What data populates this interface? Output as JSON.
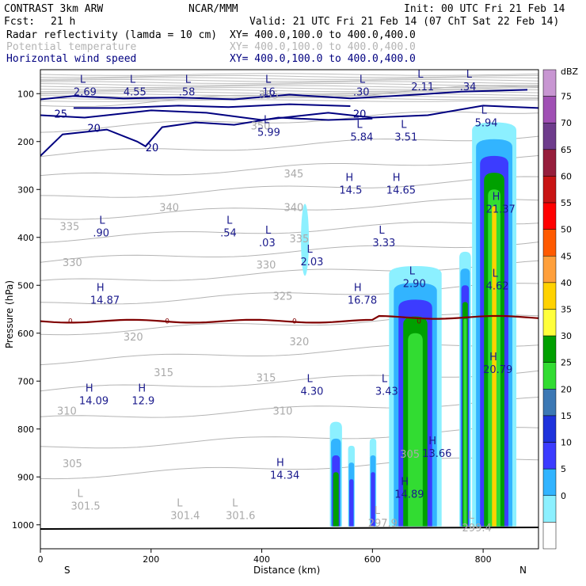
{
  "header": {
    "model": "CONTRAST  3km ARW",
    "center": "NCAR/MMM",
    "init": "Init: 00 UTC Fri 21 Feb 14",
    "fcst_label": "Fcst:",
    "fcst_value": "21 h",
    "valid": "Valid: 21 UTC Fri 21 Feb 14 (07 ChT Sat 22 Feb 14)"
  },
  "fields": [
    {
      "name": "Radar reflectivity (lamda = 10 cm)",
      "xy": "XY= 400.0,100.0 to 400.0,400.0",
      "color": "#000000"
    },
    {
      "name": "Potential temperature",
      "xy": "XY= 400.0,100.0 to 400.0,400.0",
      "color": "#b4b4b4"
    },
    {
      "name": "Horizontal wind speed",
      "xy": "XY= 400.0,100.0 to 400.0,400.0",
      "color": "#000080"
    }
  ],
  "chart_data": {
    "type": "heatmap",
    "xlabel": "Distance (km)",
    "ylabel": "Pressure (hPa)",
    "xlim": [
      0,
      900
    ],
    "ylim": [
      1050,
      50
    ],
    "xticks": [
      0,
      200,
      400,
      600,
      800
    ],
    "yticks": [
      100,
      200,
      300,
      400,
      500,
      600,
      700,
      800,
      900,
      1000
    ],
    "x_ends": {
      "left": "S",
      "right": "N"
    },
    "colorbar": {
      "unit": "dBZ",
      "levels": [
        75,
        70,
        65,
        60,
        55,
        50,
        45,
        40,
        35,
        30,
        25,
        20,
        15,
        10,
        5,
        0
      ],
      "colors": [
        "#c896d2",
        "#a050b4",
        "#6e3c8c",
        "#961e3c",
        "#c81414",
        "#ff0000",
        "#ff5a00",
        "#ffa03c",
        "#ffd200",
        "#ffff3c",
        "#00a000",
        "#32dc32",
        "#3c78b4",
        "#1e32dc",
        "#3c3cff",
        "#32b4ff",
        "#8cf0ff",
        "#ffffff"
      ]
    },
    "reflectivity_cells": [
      {
        "x1": 523,
        "x2": 545,
        "top": 785,
        "max_dbz": 25
      },
      {
        "x1": 556,
        "x2": 568,
        "top": 835,
        "max_dbz": 20
      },
      {
        "x1": 595,
        "x2": 607,
        "top": 820,
        "max_dbz": 20
      },
      {
        "x1": 630,
        "x2": 725,
        "top": 460,
        "max_dbz": 30
      },
      {
        "x1": 757,
        "x2": 778,
        "top": 430,
        "max_dbz": 30
      },
      {
        "x1": 780,
        "x2": 860,
        "top": 160,
        "max_dbz": 40
      }
    ],
    "reflectivity_aloft": [
      {
        "x": 478,
        "p1": 330,
        "p2": 480,
        "dbz": 10
      }
    ],
    "freezing_level": {
      "value": 0,
      "pressure": 575,
      "color": "#800000"
    },
    "wind_contours": [
      {
        "level": 25,
        "label_x": 25,
        "label_p": 150
      },
      {
        "level": 20,
        "label_x": 85,
        "label_p": 180
      },
      {
        "level": 20,
        "label_x": 190,
        "label_p": 220
      },
      {
        "level": 20,
        "label_x": 565,
        "label_p": 150
      }
    ],
    "theta_labels": [
      {
        "v": "355",
        "x": 395,
        "p": 110
      },
      {
        "v": "350",
        "x": 380,
        "p": 175
      },
      {
        "v": "345",
        "x": 440,
        "p": 275
      },
      {
        "v": "340",
        "x": 215,
        "p": 345
      },
      {
        "v": "340",
        "x": 440,
        "p": 345
      },
      {
        "v": "335",
        "x": 35,
        "p": 385
      },
      {
        "v": "335",
        "x": 450,
        "p": 410
      },
      {
        "v": "330",
        "x": 40,
        "p": 460
      },
      {
        "v": "330",
        "x": 390,
        "p": 465
      },
      {
        "v": "325",
        "x": 420,
        "p": 530
      },
      {
        "v": "320",
        "x": 150,
        "p": 615
      },
      {
        "v": "320",
        "x": 450,
        "p": 625
      },
      {
        "v": "315",
        "x": 205,
        "p": 690
      },
      {
        "v": "315",
        "x": 390,
        "p": 700
      },
      {
        "v": "310",
        "x": 30,
        "p": 770
      },
      {
        "v": "310",
        "x": 420,
        "p": 770
      },
      {
        "v": "305",
        "x": 40,
        "p": 880
      },
      {
        "v": "305",
        "x": 650,
        "p": 860
      }
    ],
    "theta_extrema": [
      {
        "type": "L",
        "v": "301.5",
        "x": 55,
        "p": 965
      },
      {
        "type": "L",
        "v": "301.4",
        "x": 235,
        "p": 985
      },
      {
        "type": "L",
        "v": "301.6",
        "x": 335,
        "p": 985
      },
      {
        "type": "L",
        "v": "297.9",
        "x": 592,
        "p": 1000
      },
      {
        "type": "L",
        "v": "299.4",
        "x": 762,
        "p": 1010
      }
    ],
    "wind_extrema": [
      {
        "type": "L",
        "v": "2.69",
        "x": 60,
        "p": 100
      },
      {
        "type": "L",
        "v": "4.55",
        "x": 150,
        "p": 100
      },
      {
        "type": "L",
        "v": ".58",
        "x": 250,
        "p": 100
      },
      {
        "type": "L",
        "v": ".16",
        "x": 395,
        "p": 100
      },
      {
        "type": "L",
        "v": ".30",
        "x": 565,
        "p": 100
      },
      {
        "type": "L",
        "v": "2.11",
        "x": 670,
        "p": 90
      },
      {
        "type": "L",
        "v": ".34",
        "x": 758,
        "p": 90
      },
      {
        "type": "L",
        "v": "5.94",
        "x": 785,
        "p": 165
      },
      {
        "type": "L",
        "v": "5.99",
        "x": 392,
        "p": 185
      },
      {
        "type": "L",
        "v": "5.84",
        "x": 560,
        "p": 195
      },
      {
        "type": "L",
        "v": "3.51",
        "x": 640,
        "p": 195
      },
      {
        "type": "H",
        "v": "14.5",
        "x": 540,
        "p": 305
      },
      {
        "type": "H",
        "v": "14.65",
        "x": 625,
        "p": 305
      },
      {
        "type": "H",
        "v": "21.37",
        "x": 805,
        "p": 345
      },
      {
        "type": "L",
        "v": ".90",
        "x": 95,
        "p": 395
      },
      {
        "type": "L",
        "v": ".54",
        "x": 325,
        "p": 395
      },
      {
        "type": "L",
        "v": ".03",
        "x": 395,
        "p": 415
      },
      {
        "type": "L",
        "v": "2.03",
        "x": 470,
        "p": 455
      },
      {
        "type": "L",
        "v": "3.33",
        "x": 600,
        "p": 415
      },
      {
        "type": "L",
        "v": "2.90",
        "x": 655,
        "p": 500
      },
      {
        "type": "L",
        "v": "4.62",
        "x": 805,
        "p": 505
      },
      {
        "type": "H",
        "v": "14.87",
        "x": 90,
        "p": 535
      },
      {
        "type": "H",
        "v": "16.78",
        "x": 555,
        "p": 535
      },
      {
        "type": "H",
        "v": "20.79",
        "x": 800,
        "p": 680
      },
      {
        "type": "L",
        "v": "4.30",
        "x": 470,
        "p": 725
      },
      {
        "type": "L",
        "v": "3.43",
        "x": 605,
        "p": 725
      },
      {
        "type": "H",
        "v": "14.09",
        "x": 70,
        "p": 745
      },
      {
        "type": "H",
        "v": "12.9",
        "x": 165,
        "p": 745
      },
      {
        "type": "H",
        "v": "13.66",
        "x": 690,
        "p": 855
      },
      {
        "type": "H",
        "v": "14.34",
        "x": 415,
        "p": 900
      },
      {
        "type": "H",
        "v": "14.89",
        "x": 640,
        "p": 940
      }
    ]
  }
}
